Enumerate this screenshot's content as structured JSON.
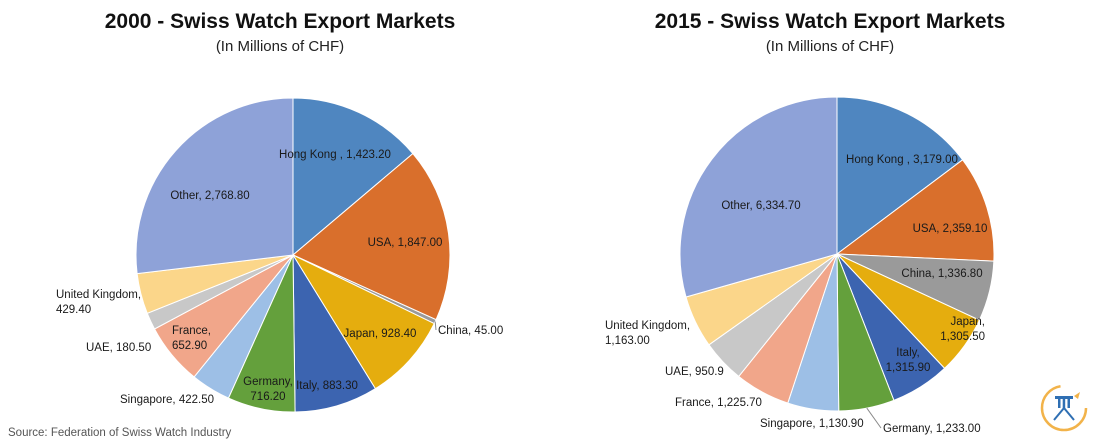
{
  "source": "Source: Federation of Swiss Watch Industry",
  "chart_data": [
    {
      "type": "pie",
      "title": "2000 - Swiss Watch Export Markets",
      "subtitle": "(In Millions of CHF)",
      "slices": [
        {
          "label": "Hong Kong",
          "value": 1423.2,
          "text": "Hong Kong , 1,423.20",
          "color": "#4f86c0"
        },
        {
          "label": "USA",
          "value": 1847.0,
          "text": "USA, 1,847.00",
          "color": "#d96f2c"
        },
        {
          "label": "China",
          "value": 45.0,
          "text": "China, 45.00",
          "color": "#9a9a9a"
        },
        {
          "label": "Japan",
          "value": 928.4,
          "text": "Japan, 928.40",
          "color": "#e5ad0e"
        },
        {
          "label": "Italy",
          "value": 883.3,
          "text": "Italy, 883.30",
          "color": "#3c64b0"
        },
        {
          "label": "Germany",
          "value": 716.2,
          "text": "Germany, 716.20",
          "color": "#64a03c"
        },
        {
          "label": "Singapore",
          "value": 422.5,
          "text": "Singapore, 422.50",
          "color": "#9dbfe6"
        },
        {
          "label": "France",
          "value": 652.9,
          "text": "France, 652.90",
          "color": "#f1a68a"
        },
        {
          "label": "UAE",
          "value": 180.5,
          "text": "UAE, 180.50",
          "color": "#c8c8c8"
        },
        {
          "label": "United Kingdom",
          "value": 429.4,
          "text": "United Kingdom, 429.40",
          "color": "#fbd68a"
        },
        {
          "label": "Other",
          "value": 2768.8,
          "text": "Other, 2,768.80",
          "color": "#8ea2d8"
        }
      ]
    },
    {
      "type": "pie",
      "title": "2015 - Swiss Watch Export Markets",
      "subtitle": "(In Millions of CHF)",
      "slices": [
        {
          "label": "Hong Kong",
          "value": 3179.0,
          "text": "Hong Kong , 3,179.00",
          "color": "#4f86c0"
        },
        {
          "label": "USA",
          "value": 2359.1,
          "text": "USA, 2,359.10",
          "color": "#d96f2c"
        },
        {
          "label": "China",
          "value": 1336.8,
          "text": "China, 1,336.80",
          "color": "#9a9a9a"
        },
        {
          "label": "Japan",
          "value": 1305.5,
          "text": "Japan, 1,305.50",
          "color": "#e5ad0e"
        },
        {
          "label": "Italy",
          "value": 1315.9,
          "text": "Italy, 1,315.90",
          "color": "#3c64b0"
        },
        {
          "label": "Germany",
          "value": 1233.0,
          "text": "Germany, 1,233.00",
          "color": "#64a03c"
        },
        {
          "label": "Singapore",
          "value": 1130.9,
          "text": "Singapore, 1,130.90",
          "color": "#9dbfe6"
        },
        {
          "label": "France",
          "value": 1225.7,
          "text": "France, 1,225.70",
          "color": "#f1a68a"
        },
        {
          "label": "UAE",
          "value": 950.9,
          "text": "UAE, 950.9",
          "color": "#c8c8c8"
        },
        {
          "label": "United Kingdom",
          "value": 1163.0,
          "text": "United Kingdom, 1,163.00",
          "color": "#fbd68a"
        },
        {
          "label": "Other",
          "value": 6334.7,
          "text": "Other, 6,334.70",
          "color": "#8ea2d8"
        }
      ]
    }
  ]
}
